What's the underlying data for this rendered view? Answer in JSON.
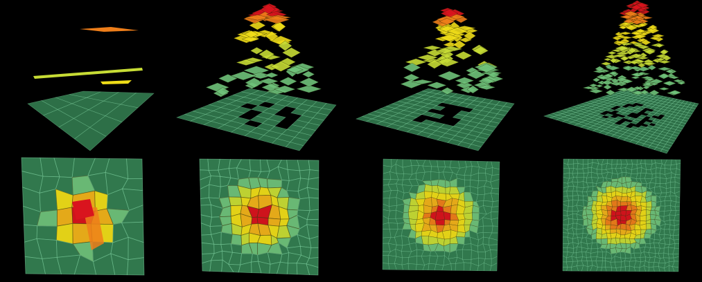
{
  "figure": {
    "background": "#000000",
    "rows": [
      "perspective",
      "top"
    ],
    "columns": 4,
    "palette": {
      "cell_low": "#3f9a63",
      "cell_low_edge": "#7fd0a0",
      "ring_green": "#6fc27a",
      "ring_yellow_green": "#c7dc35",
      "ring_yellow": "#eedc18",
      "ring_orange_yellow": "#f0b21a",
      "ring_orange": "#ee7e1a",
      "peak": "#d9141e",
      "edge": "#14301f"
    },
    "panels": [
      {
        "refinement_level": 1
      },
      {
        "refinement_level": 2
      },
      {
        "refinement_level": 3
      },
      {
        "refinement_level": 4
      }
    ]
  }
}
